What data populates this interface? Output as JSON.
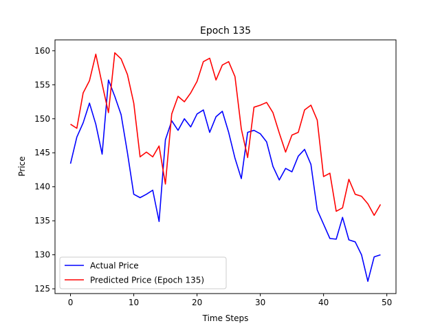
{
  "chart_data": {
    "type": "line",
    "title": "Epoch 135",
    "xlabel": "Time Steps",
    "ylabel": "Price",
    "xlim": [
      -2.45,
      51.45
    ],
    "ylim": [
      124.3,
      161.6
    ],
    "xticks": [
      0,
      10,
      20,
      30,
      40,
      50
    ],
    "yticks": [
      125,
      130,
      135,
      140,
      145,
      150,
      155,
      160
    ],
    "grid": false,
    "legend_position": "lower-left",
    "x": [
      0,
      1,
      2,
      3,
      4,
      5,
      6,
      7,
      8,
      9,
      10,
      11,
      12,
      13,
      14,
      15,
      16,
      17,
      18,
      19,
      20,
      21,
      22,
      23,
      24,
      25,
      26,
      27,
      28,
      29,
      30,
      31,
      32,
      33,
      34,
      35,
      36,
      37,
      38,
      39,
      40,
      41,
      42,
      43,
      44,
      45,
      46,
      47,
      48,
      49
    ],
    "series": [
      {
        "name": "Actual Price",
        "color": "#0000ff",
        "values": [
          143.4,
          147.3,
          149.4,
          152.3,
          149.2,
          144.8,
          155.7,
          153.3,
          150.6,
          145.0,
          138.9,
          138.4,
          138.9,
          139.5,
          134.9,
          146.9,
          149.7,
          148.3,
          150.0,
          148.8,
          150.7,
          151.3,
          148.0,
          150.3,
          151.1,
          148.0,
          144.2,
          141.2,
          148.0,
          148.3,
          147.8,
          146.6,
          143.0,
          141.0,
          142.7,
          142.2,
          144.5,
          145.5,
          143.3,
          136.6,
          134.5,
          132.4,
          132.3,
          135.5,
          132.2,
          131.9,
          130.0,
          126.1,
          129.7,
          130.0
        ]
      },
      {
        "name": "Predicted Price (Epoch 135)",
        "color": "#ff0000",
        "values": [
          149.2,
          148.6,
          153.8,
          155.6,
          159.5,
          155.1,
          150.9,
          159.7,
          158.8,
          156.5,
          152.3,
          144.4,
          145.1,
          144.4,
          146.0,
          140.4,
          150.7,
          153.3,
          152.5,
          153.8,
          155.5,
          158.4,
          158.9,
          155.7,
          157.9,
          158.4,
          156.2,
          148.5,
          144.3,
          151.7,
          152.0,
          152.4,
          150.9,
          147.9,
          145.1,
          147.6,
          148.0,
          151.3,
          152.0,
          149.8,
          141.5,
          142.0,
          136.4,
          136.9,
          141.1,
          138.9,
          138.6,
          137.5,
          135.8,
          137.4
        ]
      }
    ]
  }
}
